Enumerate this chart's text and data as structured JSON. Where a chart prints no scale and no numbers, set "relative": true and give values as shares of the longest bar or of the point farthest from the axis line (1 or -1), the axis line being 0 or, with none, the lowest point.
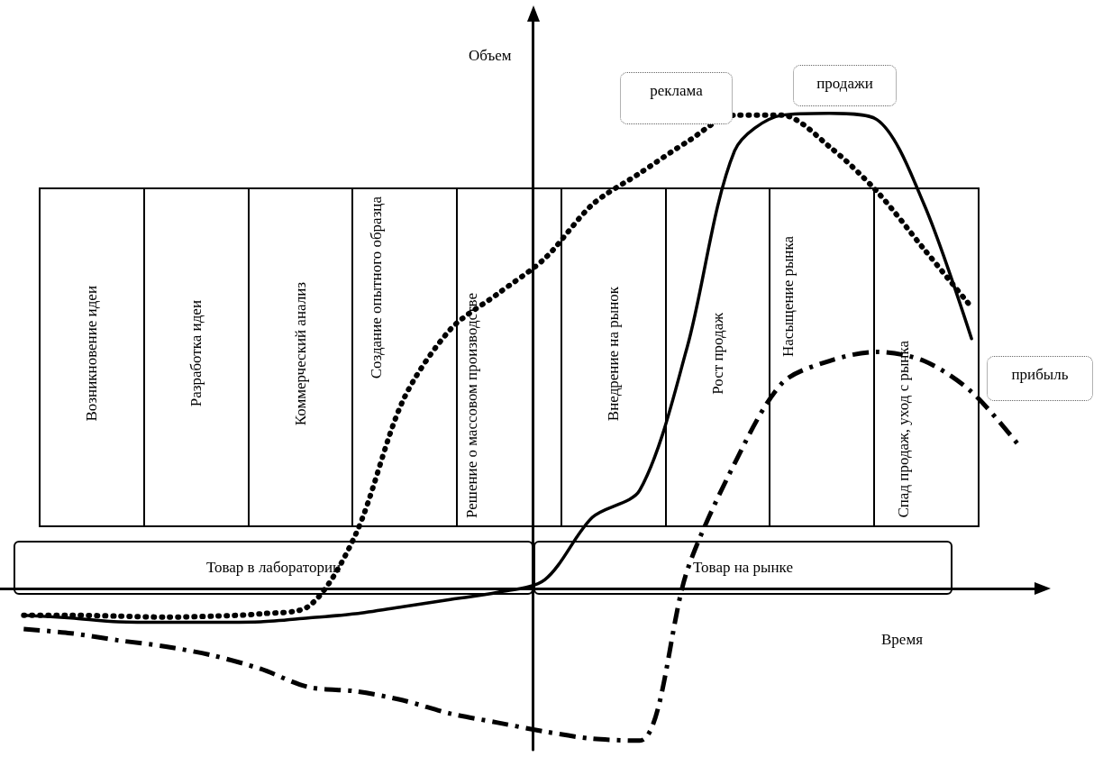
{
  "chart_data": {
    "type": "line",
    "relative": true,
    "xlabel": "Время",
    "ylabel": "Объем",
    "categories": [
      null,
      null,
      null,
      null,
      null,
      null,
      null,
      null,
      null,
      null,
      null,
      null,
      null,
      null,
      null,
      null,
      null,
      null,
      null,
      null,
      null,
      null
    ],
    "series": [
      {
        "name": "реклама",
        "color": "#000000",
        "line_style": "dotted",
        "values": [
          -0.056,
          -0.056,
          -0.058,
          -0.06,
          -0.058,
          -0.053,
          -0.038,
          0.113,
          0.395,
          0.545,
          0.62,
          0.695,
          0.808,
          0.874,
          0.94,
          0.996,
          0.996,
          0.93,
          0.836,
          0.714,
          0.592,
          null
        ]
      },
      {
        "name": "продажи",
        "color": "#000000",
        "line_style": "solid",
        "values": [
          -0.056,
          -0.062,
          -0.07,
          -0.071,
          -0.071,
          -0.07,
          -0.062,
          -0.053,
          -0.038,
          -0.023,
          -0.008,
          0.019,
          0.15,
          0.207,
          0.508,
          0.921,
          0.996,
          1.0,
          0.987,
          0.808,
          0.526,
          null
        ]
      },
      {
        "name": "прибыль",
        "color": "#000000",
        "line_style": "dashed",
        "values": [
          -0.085,
          -0.094,
          -0.109,
          -0.122,
          -0.141,
          -0.169,
          -0.207,
          -0.216,
          -0.235,
          -0.263,
          -0.282,
          -0.301,
          -0.316,
          -0.32,
          0.038,
          0.263,
          0.432,
          0.479,
          0.498,
          0.479,
          0.414,
          0.301
        ]
      }
    ],
    "annotations": [
      "Возникновение идеи",
      "Разработка идеи",
      "Коммерческий анализ",
      "Создание опытного образца",
      "Решение о массовом производстве",
      "Внедрение на рынок",
      "Рост продаж",
      "Насыщение рынка",
      "Спад продаж, уход с рынка",
      "Товар в лаборатории",
      "Товар на рынке"
    ],
    "legend": false,
    "grid": false,
    "marker": "none"
  }
}
